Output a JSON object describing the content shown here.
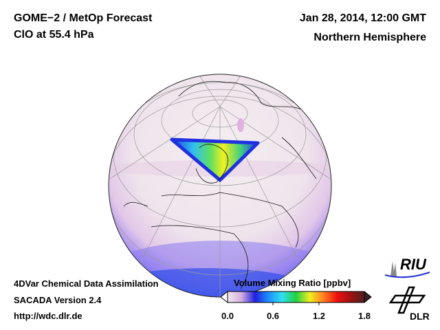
{
  "header": {
    "title_line1": "GOME−2 / MetOp Forecast",
    "title_line2": "ClO at 55.4 hPa",
    "date": "Jan 28, 2014, 12:00 GMT",
    "region": "Northern Hemisphere"
  },
  "footer": {
    "line1": "4DVar Chemical Data Assimilation",
    "line2": "SACADA Version 2.4",
    "line3": "http://wdc.dlr.de"
  },
  "colorbar": {
    "title": "Volume Mixing Ratio [ppbv]",
    "ticks": [
      "0.0",
      "0.6",
      "1.2",
      "1.8"
    ],
    "range": [
      0.0,
      1.8
    ],
    "colors": [
      "#f2e8ee",
      "#d6b0e0",
      "#2020e0",
      "#1e90ff",
      "#30e0f0",
      "#20d040",
      "#f0f020",
      "#ff8020",
      "#ee1010",
      "#a01010",
      "#502020"
    ]
  },
  "logos": {
    "riu": "RIU",
    "dlr": "DLR"
  }
}
